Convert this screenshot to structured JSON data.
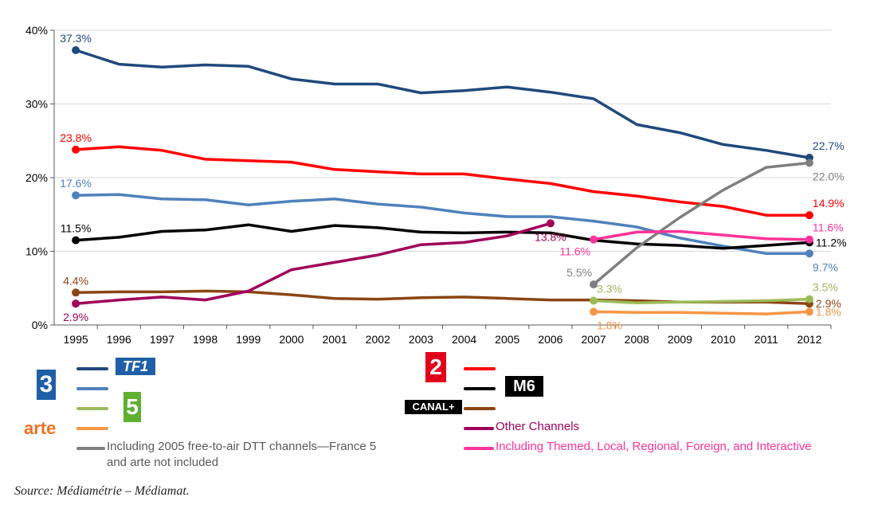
{
  "chart_data": {
    "type": "line",
    "categories": [
      "1995",
      "1996",
      "1997",
      "1998",
      "1999",
      "2000",
      "2001",
      "2002",
      "2003",
      "2004",
      "2005",
      "2006",
      "2007",
      "2008",
      "2009",
      "2010",
      "2011",
      "2012"
    ],
    "ylim": [
      0,
      40
    ],
    "yticks": [
      {
        "value": 0,
        "label": "0%"
      },
      {
        "value": 10,
        "label": "10%"
      },
      {
        "value": 20,
        "label": "20%"
      },
      {
        "value": 30,
        "label": "30%"
      },
      {
        "value": 40,
        "label": "40%"
      }
    ],
    "grid": true,
    "series": [
      {
        "name": "TF1",
        "color": "#1f497d",
        "values": [
          37.3,
          35.4,
          35.0,
          35.3,
          35.1,
          33.4,
          32.7,
          32.7,
          31.5,
          31.8,
          32.3,
          31.6,
          30.7,
          27.2,
          26.1,
          24.5,
          23.7,
          22.7
        ],
        "labels": [
          {
            "index": 0,
            "text": "37.3%",
            "pos": "above"
          },
          {
            "index": 17,
            "text": "22.7%",
            "pos": "above-right"
          }
        ]
      },
      {
        "name": "France 2",
        "color": "#ff0000",
        "values": [
          23.8,
          24.2,
          23.7,
          22.5,
          22.3,
          22.1,
          21.1,
          20.8,
          20.5,
          20.5,
          19.8,
          19.2,
          18.1,
          17.5,
          16.7,
          16.1,
          14.9,
          14.9
        ],
        "labels": [
          {
            "index": 0,
            "text": "23.8%",
            "pos": "above"
          },
          {
            "index": 17,
            "text": "14.9%",
            "pos": "above-right"
          }
        ]
      },
      {
        "name": "France 3",
        "color": "#4f81bd",
        "values": [
          17.6,
          17.7,
          17.1,
          17.0,
          16.3,
          16.8,
          17.1,
          16.4,
          16.0,
          15.2,
          14.7,
          14.7,
          14.1,
          13.3,
          11.8,
          10.7,
          9.7,
          9.7
        ],
        "labels": [
          {
            "index": 0,
            "text": "17.6%",
            "pos": "above"
          },
          {
            "index": 17,
            "text": "9.7%",
            "pos": "below-right"
          }
        ]
      },
      {
        "name": "M6",
        "color": "#000000",
        "values": [
          11.5,
          11.9,
          12.7,
          12.9,
          13.6,
          12.7,
          13.5,
          13.2,
          12.6,
          12.5,
          12.6,
          12.5,
          11.5,
          11.0,
          10.8,
          10.4,
          10.8,
          11.2
        ],
        "labels": [
          {
            "index": 0,
            "text": "11.5%",
            "pos": "above"
          },
          {
            "index": 17,
            "text": "11.2%",
            "pos": "right"
          }
        ]
      },
      {
        "name": "Canal+",
        "color": "#8b4513",
        "values": [
          4.4,
          4.5,
          4.5,
          4.6,
          4.5,
          4.1,
          3.6,
          3.5,
          3.7,
          3.8,
          3.6,
          3.4,
          3.4,
          3.3,
          3.1,
          3.1,
          3.1,
          2.9
        ],
        "labels": [
          {
            "index": 0,
            "text": "4.4%",
            "pos": "above"
          },
          {
            "index": 17,
            "text": "2.9%",
            "pos": "right"
          }
        ]
      },
      {
        "name": "Other Channels",
        "color": "#a0005a",
        "values": [
          2.9,
          3.4,
          3.8,
          3.4,
          4.6,
          7.5,
          8.5,
          9.5,
          10.9,
          11.2,
          12.1,
          13.8,
          null,
          null,
          null,
          null,
          null,
          null
        ],
        "labels": [
          {
            "index": 0,
            "text": "2.9%",
            "pos": "below"
          },
          {
            "index": 11,
            "text": "13.8%",
            "pos": "below"
          }
        ]
      },
      {
        "name": "Including 2005 free-to-air DTT channels—France 5 and arte not included",
        "color": "#7f7f7f",
        "values": [
          null,
          null,
          null,
          null,
          null,
          null,
          null,
          null,
          null,
          null,
          null,
          null,
          5.5,
          10.5,
          14.6,
          18.3,
          21.4,
          22.0
        ],
        "labels": [
          {
            "index": 12,
            "text": "5.5%",
            "pos": "above-left"
          },
          {
            "index": 17,
            "text": "22.0%",
            "pos": "below-right"
          }
        ]
      },
      {
        "name": "Including Themed, Local, Regional, Foreign, and Interactive",
        "color": "#ff3399",
        "values": [
          null,
          null,
          null,
          null,
          null,
          null,
          null,
          null,
          null,
          null,
          null,
          null,
          11.6,
          12.6,
          12.7,
          12.2,
          11.7,
          11.6
        ],
        "labels": [
          {
            "index": 12,
            "text": "11.6%",
            "pos": "below-left"
          },
          {
            "index": 17,
            "text": "11.6%",
            "pos": "above-right"
          }
        ]
      },
      {
        "name": "France 5",
        "color": "#9bbb59",
        "values": [
          null,
          null,
          null,
          null,
          null,
          null,
          null,
          null,
          null,
          null,
          null,
          null,
          3.3,
          3.0,
          3.1,
          3.2,
          3.3,
          3.5
        ],
        "labels": [
          {
            "index": 12,
            "text": "3.3%",
            "pos": "above-right"
          },
          {
            "index": 17,
            "text": "3.5%",
            "pos": "above-right"
          }
        ]
      },
      {
        "name": "arte",
        "color": "#f79646",
        "values": [
          null,
          null,
          null,
          null,
          null,
          null,
          null,
          null,
          null,
          null,
          null,
          null,
          1.8,
          1.7,
          1.7,
          1.6,
          1.5,
          1.8
        ],
        "labels": [
          {
            "index": 12,
            "text": "1.8%",
            "pos": "below-right"
          },
          {
            "index": 17,
            "text": "1.8%",
            "pos": "right"
          }
        ]
      }
    ]
  },
  "legend": {
    "tf1_logo": "TF1",
    "france2_logo": "2",
    "france3_logo": "3",
    "m6_logo": "M6",
    "france5_logo": "5",
    "canalplus_logo": "CANAL+",
    "arte_logo": "arte",
    "other_channels": "Other Channels",
    "dtt_note": "Including 2005 free-to-air DTT channels—France 5\nand arte not included",
    "themed_note": "Including Themed, Local, Regional, Foreign, and Interactive"
  },
  "source": "Source: Médiamétrie – Médiamat."
}
